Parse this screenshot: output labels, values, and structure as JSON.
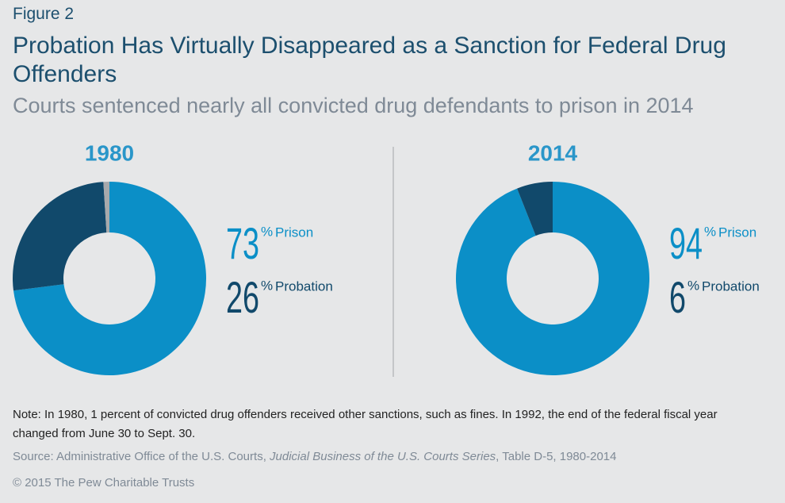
{
  "figure_label": "Figure 2",
  "title": "Probation Has Virtually Disappeared as a Sanction for Federal Drug Offenders",
  "subtitle": "Courts sentenced nearly all convicted drug defendants to prison in 2014",
  "chart_data": [
    {
      "type": "pie",
      "donut": true,
      "title": "1980",
      "unit": "%",
      "categories": [
        "Prison",
        "Probation",
        null
      ],
      "values": [
        73,
        26,
        1
      ],
      "colors": [
        "#0b8fc7",
        "#11496b",
        "#a7a9ac"
      ]
    },
    {
      "type": "pie",
      "donut": true,
      "title": "2014",
      "unit": "%",
      "categories": [
        "Prison",
        "Probation"
      ],
      "values": [
        94,
        6
      ],
      "colors": [
        "#0b8fc7",
        "#11496b"
      ]
    }
  ],
  "note": "Note: In 1980, 1 percent of convicted drug offenders received other sanctions, such as fines. In 1992, the end of the federal fiscal year changed from June 30 to Sept. 30.",
  "source": {
    "prefix": "Source: Administrative Office of the U.S. Courts, ",
    "italic": "Judicial Business of the U.S. Courts Series",
    "suffix": ", Table D-5, 1980-2014"
  },
  "copyright": "© 2015 The Pew Charitable Trusts"
}
